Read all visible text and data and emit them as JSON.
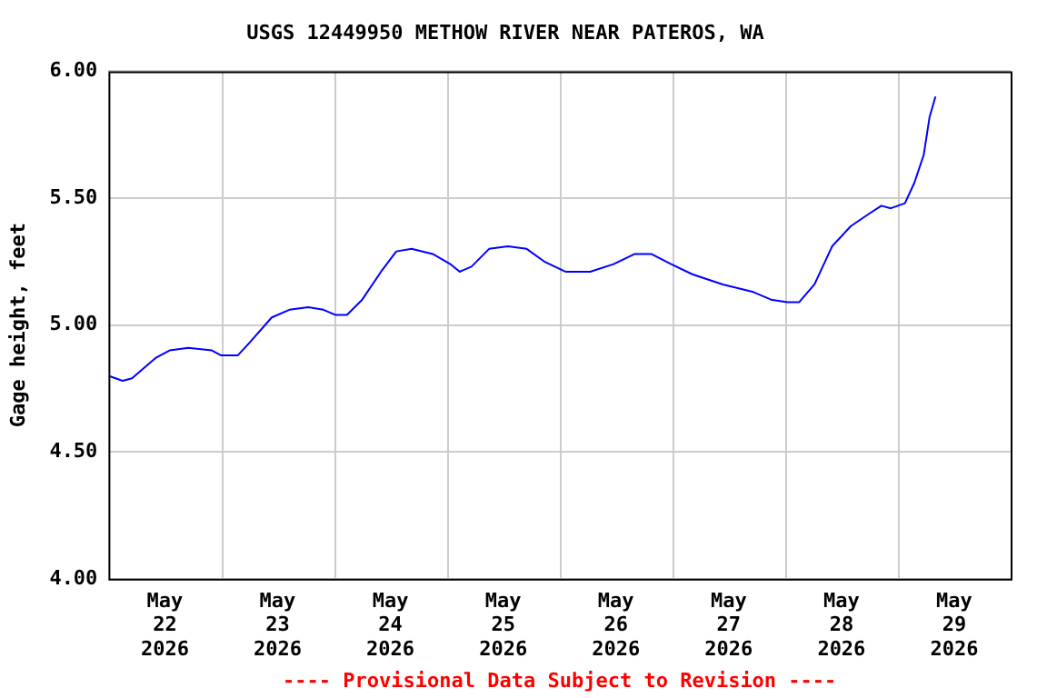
{
  "chart_data": {
    "type": "line",
    "title": "USGS 12449950 METHOW RIVER NEAR PATEROS, WA",
    "ylabel": "Gage height, feet",
    "annotations": [
      "---- Provisional Data Subject to Revision ----"
    ],
    "x": [
      "2026-05-22T00:00",
      "2026-05-22T03:00",
      "2026-05-22T05:00",
      "2026-05-22T10:00",
      "2026-05-22T13:00",
      "2026-05-22T17:00",
      "2026-05-22T22:00",
      "2026-05-23T00:00",
      "2026-05-23T03:30",
      "2026-05-23T06:00",
      "2026-05-23T10:45",
      "2026-05-23T14:30",
      "2026-05-23T18:30",
      "2026-05-23T21:45",
      "2026-05-24T00:15",
      "2026-05-24T02:45",
      "2026-05-24T06:00",
      "2026-05-24T10:00",
      "2026-05-24T13:15",
      "2026-05-24T16:30",
      "2026-05-24T21:00",
      "2026-05-25T00:45",
      "2026-05-25T02:45",
      "2026-05-25T05:15",
      "2026-05-25T09:00",
      "2026-05-25T13:00",
      "2026-05-25T17:00",
      "2026-05-25T20:45",
      "2026-05-26T01:15",
      "2026-05-26T06:30",
      "2026-05-26T11:30",
      "2026-05-26T16:00",
      "2026-05-26T19:30",
      "2026-05-26T23:45",
      "2026-05-27T04:15",
      "2026-05-27T10:45",
      "2026-05-27T17:15",
      "2026-05-27T21:00",
      "2026-05-28T00:30",
      "2026-05-28T03:00",
      "2026-05-28T06:15",
      "2026-05-28T10:00",
      "2026-05-28T14:00",
      "2026-05-28T18:00",
      "2026-05-28T20:30",
      "2026-05-28T22:30",
      "2026-05-29T01:30",
      "2026-05-29T03:30",
      "2026-05-29T05:30",
      "2026-05-29T06:45",
      "2026-05-29T08:00"
    ],
    "series": [
      {
        "color": "#0000ff",
        "values": [
          4.8,
          4.78,
          4.79,
          4.87,
          4.9,
          4.91,
          4.9,
          4.88,
          4.88,
          4.93,
          5.03,
          5.06,
          5.07,
          5.06,
          5.04,
          5.04,
          5.1,
          5.21,
          5.29,
          5.3,
          5.28,
          5.24,
          5.21,
          5.23,
          5.3,
          5.31,
          5.3,
          5.25,
          5.21,
          5.21,
          5.24,
          5.28,
          5.28,
          5.24,
          5.2,
          5.16,
          5.13,
          5.1,
          5.09,
          5.09,
          5.16,
          5.31,
          5.39,
          5.44,
          5.47,
          5.46,
          5.48,
          5.56,
          5.67,
          5.82,
          5.9
        ]
      }
    ],
    "xlim": [
      "2026-05-22T00:00",
      "2026-05-30T00:00"
    ],
    "xticks": [
      {
        "value": "2026-05-22T12:00",
        "label": "May\n22\n2026"
      },
      {
        "value": "2026-05-23T00:00",
        "label": null
      },
      {
        "value": "2026-05-23T12:00",
        "label": "May\n23\n2026"
      },
      {
        "value": "2026-05-24T00:00",
        "label": null
      },
      {
        "value": "2026-05-24T12:00",
        "label": "May\n24\n2026"
      },
      {
        "value": "2026-05-25T00:00",
        "label": null
      },
      {
        "value": "2026-05-25T12:00",
        "label": "May\n25\n2026"
      },
      {
        "value": "2026-05-26T00:00",
        "label": null
      },
      {
        "value": "2026-05-26T12:00",
        "label": "May\n26\n2026"
      },
      {
        "value": "2026-05-27T00:00",
        "label": null
      },
      {
        "value": "2026-05-27T12:00",
        "label": "May\n27\n2026"
      },
      {
        "value": "2026-05-28T00:00",
        "label": null
      },
      {
        "value": "2026-05-28T12:00",
        "label": "May\n28\n2026"
      },
      {
        "value": "2026-05-29T00:00",
        "label": null
      },
      {
        "value": "2026-05-29T12:00",
        "label": "May\n29\n2026"
      }
    ],
    "ylim": [
      4,
      6
    ],
    "yticks": [
      {
        "value": 4,
        "label": "4.00"
      },
      {
        "value": 4.5,
        "label": "4.50"
      },
      {
        "value": 5,
        "label": "5.00"
      },
      {
        "value": 5.5,
        "label": "5.50"
      },
      {
        "value": 6,
        "label": "6.00"
      }
    ],
    "grid": true,
    "legend": false,
    "marker": "none",
    "line_style": "solid"
  }
}
